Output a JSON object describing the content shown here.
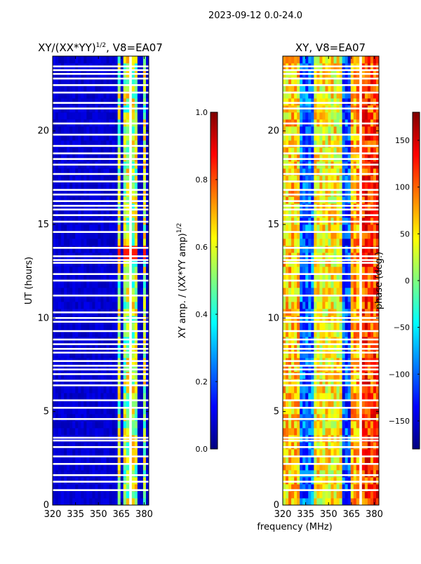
{
  "suptitle": "2023-09-12 0.0-24.0",
  "colors": {
    "jet_stops": [
      "#00007f",
      "#0000ff",
      "#007fff",
      "#00ffff",
      "#7fff7f",
      "#ffff00",
      "#ff7f00",
      "#ff0000",
      "#7f0000"
    ],
    "gap": "#ffffff",
    "frame": "#000000"
  },
  "chart_data": [
    {
      "type": "heatmap",
      "title": "XY/(XX*YY)",
      "title_exponent": "1/2",
      "title_suffix": ", V8=EA07",
      "xlabel": "",
      "ylabel": "UT (hours)",
      "xlim": [
        320,
        383
      ],
      "ylim": [
        0,
        24
      ],
      "xticks": [
        320,
        335,
        350,
        365,
        380
      ],
      "xtick_labels": [
        "320",
        "335",
        "350",
        "365",
        "380"
      ],
      "yticks": [
        0,
        5,
        10,
        15,
        20
      ],
      "ytick_labels": [
        "0",
        "5",
        "10",
        "15",
        "20"
      ],
      "colorbar": {
        "label": "XY amp. / (XX*YY amp)",
        "label_exponent": "1/2",
        "min": 0.0,
        "max": 1.0,
        "ticks": [
          0.0,
          0.2,
          0.4,
          0.6,
          0.8,
          1.0
        ],
        "tick_labels": [
          "0.0",
          "0.2",
          "0.4",
          "0.6",
          "0.8",
          "1.0"
        ]
      },
      "flagged_bands_mhz": [
        [
          360,
          361.5
        ],
        [
          370,
          371.5
        ],
        [
          377,
          378
        ]
      ],
      "active_bands_mhz": [
        [
          362,
          364
        ],
        [
          366,
          370
        ],
        [
          372,
          376
        ],
        [
          378.5,
          380.5
        ]
      ],
      "typical_value_quiet": 0.08,
      "typical_value_active": 0.55,
      "rfi_hours": [
        13.5
      ],
      "gap_hours_utc": [
        0.8,
        1.25,
        1.6,
        2.2,
        2.6,
        3.1,
        3.45,
        3.6,
        4.6,
        5.2,
        5.6,
        6.4,
        6.65,
        7.0,
        7.25,
        7.45,
        7.7,
        8.15,
        8.35,
        8.6,
        8.85,
        9.3,
        9.8,
        10.0,
        10.3,
        11.2,
        12.0,
        12.35,
        12.95,
        13.1,
        13.3,
        13.75,
        14.6,
        15.15,
        15.5,
        15.8,
        16.0,
        16.25,
        16.6,
        16.85,
        17.3,
        17.7,
        18.2,
        18.5,
        18.8,
        19.2,
        19.8,
        20.4,
        21.2,
        21.5,
        22.05,
        22.45,
        22.8,
        23.05,
        23.25,
        23.45
      ]
    },
    {
      "type": "heatmap",
      "title": "XY, V8=EA07",
      "xlabel": "frequency (MHz)",
      "ylabel": "",
      "xlim": [
        320,
        383
      ],
      "ylim": [
        0,
        24
      ],
      "xticks": [
        320,
        335,
        350,
        365,
        380
      ],
      "xtick_labels": [
        "320",
        "335",
        "350",
        "365",
        "380"
      ],
      "yticks": [
        0,
        5,
        10,
        15,
        20
      ],
      "ytick_labels": [
        "0",
        "5",
        "10",
        "15",
        "20"
      ],
      "colorbar": {
        "label": "phase (deg.)",
        "min": -180,
        "max": 180,
        "ticks": [
          -150,
          -100,
          -50,
          0,
          50,
          100,
          150
        ],
        "tick_labels": [
          "−150",
          "−100",
          "−50",
          "0",
          "50",
          "100",
          "150"
        ]
      },
      "flagged_bands_mhz": [
        [
          360,
          361.5
        ],
        [
          370,
          371.5
        ],
        [
          377,
          378
        ]
      ],
      "phase_bands": [
        {
          "from_mhz": 320,
          "to_mhz": 331,
          "phase_deg": 60
        },
        {
          "from_mhz": 331,
          "to_mhz": 340,
          "phase_deg": -100
        },
        {
          "from_mhz": 340,
          "to_mhz": 359,
          "phase_deg": 45
        },
        {
          "from_mhz": 359,
          "to_mhz": 364,
          "phase_deg": -110
        },
        {
          "from_mhz": 364,
          "to_mhz": 370,
          "phase_deg": 75
        },
        {
          "from_mhz": 370,
          "to_mhz": 383,
          "phase_deg": 115
        }
      ],
      "gap_hours_utc": [
        0.8,
        1.25,
        1.6,
        2.2,
        2.6,
        3.1,
        3.45,
        3.6,
        4.6,
        5.2,
        5.6,
        6.4,
        6.65,
        7.0,
        7.25,
        7.45,
        7.7,
        8.15,
        8.35,
        8.6,
        8.85,
        9.3,
        9.8,
        10.0,
        10.3,
        11.2,
        12.0,
        12.35,
        12.95,
        13.1,
        13.3,
        13.75,
        14.6,
        15.15,
        15.5,
        15.8,
        16.0,
        16.25,
        16.6,
        16.85,
        17.3,
        17.7,
        18.2,
        18.5,
        18.8,
        19.2,
        19.8,
        20.4,
        21.2,
        21.5,
        22.05,
        22.45,
        22.8,
        23.05,
        23.25,
        23.45
      ]
    }
  ]
}
